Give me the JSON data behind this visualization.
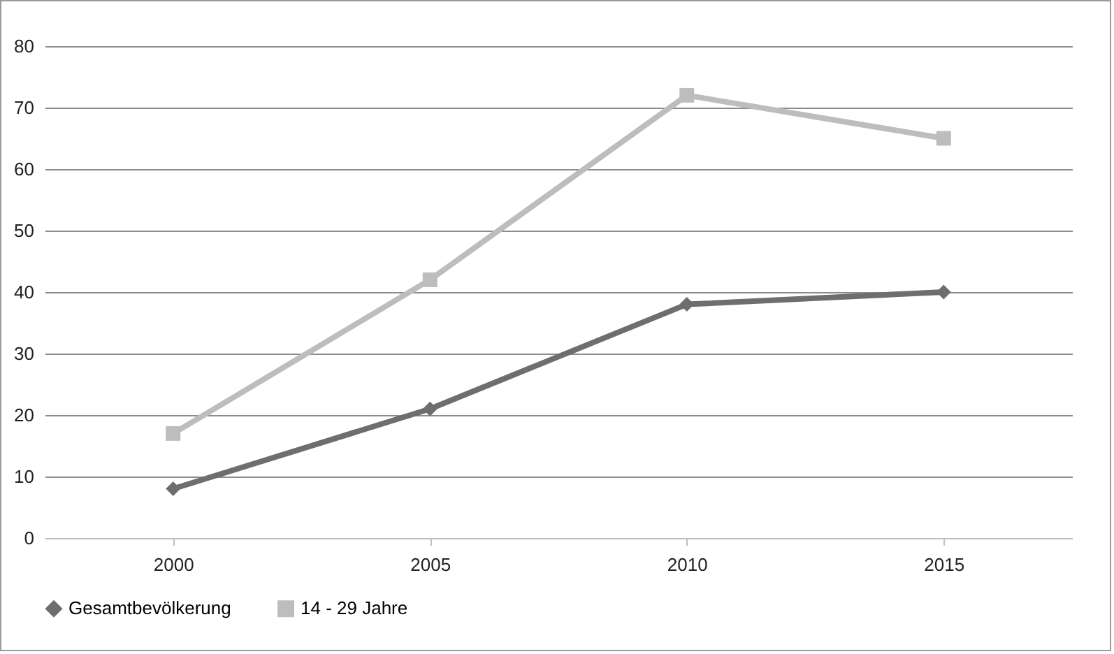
{
  "chart_data": {
    "type": "line",
    "categories": [
      "2000",
      "2005",
      "2010",
      "2015"
    ],
    "series": [
      {
        "name": "Gesamtbevölkerung",
        "color": "#6e6e6e",
        "marker": "diamond",
        "values": [
          8,
          21,
          38,
          40
        ]
      },
      {
        "name": "14 - 29 Jahre",
        "color": "#bdbdbd",
        "marker": "square",
        "values": [
          17,
          42,
          72,
          65
        ]
      }
    ],
    "ylim": [
      0,
      80
    ],
    "yticks": [
      0,
      10,
      20,
      30,
      40,
      50,
      60,
      70,
      80
    ],
    "grid": "y",
    "legend": "bottom",
    "line_style": "solid"
  }
}
